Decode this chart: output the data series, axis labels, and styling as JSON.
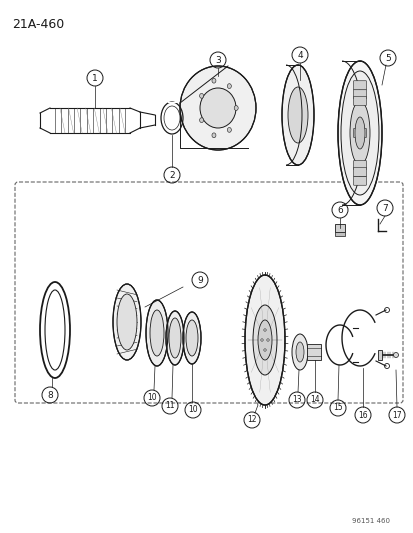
{
  "title": "21A-460",
  "watermark": "96151 460",
  "bg_color": "#ffffff",
  "line_color": "#1a1a1a",
  "fig_w": 4.14,
  "fig_h": 5.33,
  "dpi": 100
}
